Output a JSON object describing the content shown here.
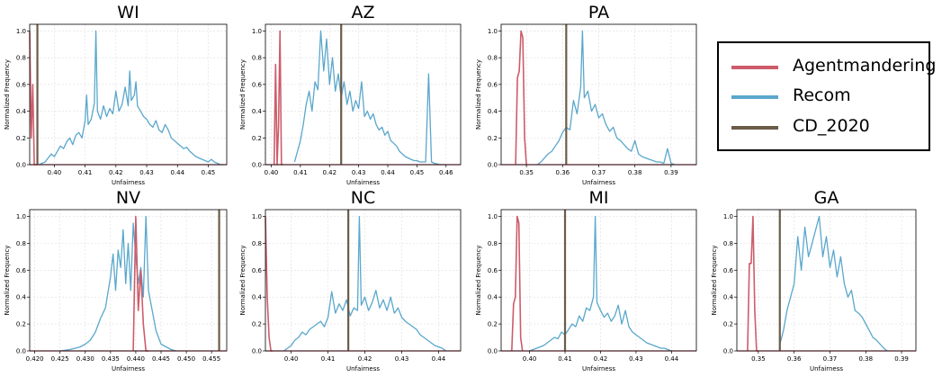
{
  "colors": {
    "agent": "#cd5c6b",
    "recom": "#5aa7cc",
    "cd": "#6b5c4a"
  },
  "legend": [
    {
      "label": "Agentmandering",
      "color": "#cd5c6b"
    },
    {
      "label": "Recom",
      "color": "#5aa7cc"
    },
    {
      "label": "CD_2020",
      "color": "#6b5c4a"
    }
  ],
  "chart_data": [
    {
      "type": "line",
      "title": "WI",
      "xlabel": "Unfairness",
      "ylabel": "Normalized Frequency",
      "xlim": [
        0.392,
        0.456
      ],
      "ylim": [
        0,
        1.05
      ],
      "xticks": [
        0.4,
        0.41,
        0.42,
        0.43,
        0.44,
        0.45
      ],
      "yticks": [
        0.0,
        0.2,
        0.4,
        0.6,
        0.8,
        1.0
      ],
      "cd_2020": 0.3945,
      "series": [
        {
          "name": "Recom",
          "x": [
            0.395,
            0.397,
            0.398,
            0.399,
            0.4,
            0.401,
            0.402,
            0.403,
            0.404,
            0.405,
            0.406,
            0.407,
            0.408,
            0.409,
            0.41,
            0.4105,
            0.411,
            0.412,
            0.413,
            0.4135,
            0.414,
            0.415,
            0.416,
            0.417,
            0.418,
            0.419,
            0.42,
            0.421,
            0.422,
            0.423,
            0.424,
            0.4245,
            0.425,
            0.426,
            0.4265,
            0.427,
            0.428,
            0.429,
            0.43,
            0.431,
            0.432,
            0.433,
            0.434,
            0.435,
            0.436,
            0.437,
            0.438,
            0.439,
            0.44,
            0.441,
            0.442,
            0.443,
            0.444,
            0.445,
            0.446,
            0.447,
            0.448,
            0.449,
            0.45,
            0.451,
            0.452,
            0.453,
            0.454,
            0.455
          ],
          "y": [
            0,
            0.02,
            0.05,
            0.08,
            0.06,
            0.1,
            0.14,
            0.12,
            0.17,
            0.2,
            0.15,
            0.22,
            0.24,
            0.2,
            0.33,
            0.52,
            0.3,
            0.34,
            0.46,
            1.0,
            0.4,
            0.34,
            0.44,
            0.36,
            0.42,
            0.38,
            0.55,
            0.4,
            0.45,
            0.58,
            0.44,
            0.7,
            0.48,
            0.52,
            0.62,
            0.44,
            0.4,
            0.36,
            0.34,
            0.3,
            0.28,
            0.33,
            0.26,
            0.24,
            0.3,
            0.26,
            0.2,
            0.18,
            0.16,
            0.14,
            0.12,
            0.13,
            0.1,
            0.08,
            0.06,
            0.05,
            0.04,
            0.03,
            0.02,
            0.04,
            0.02,
            0.01,
            0.0,
            0.0
          ]
        },
        {
          "name": "Agentmandering",
          "x": [
            0.392,
            0.3925,
            0.393,
            0.3935,
            0.394,
            0.3945
          ],
          "y": [
            1.0,
            0.2,
            0.6,
            0.0,
            0.0,
            0.0
          ]
        }
      ]
    },
    {
      "type": "line",
      "title": "AZ",
      "xlabel": "Unfairness",
      "ylabel": "Normalized Frequency",
      "xlim": [
        0.398,
        0.465
      ],
      "ylim": [
        0,
        1.05
      ],
      "xticks": [
        0.4,
        0.41,
        0.42,
        0.43,
        0.44,
        0.45,
        0.46
      ],
      "yticks": [
        0.0,
        0.2,
        0.4,
        0.6,
        0.8,
        1.0
      ],
      "cd_2020": 0.424,
      "series": [
        {
          "name": "Recom",
          "x": [
            0.408,
            0.41,
            0.411,
            0.412,
            0.413,
            0.414,
            0.415,
            0.416,
            0.417,
            0.418,
            0.419,
            0.42,
            0.421,
            0.422,
            0.423,
            0.424,
            0.425,
            0.426,
            0.427,
            0.428,
            0.429,
            0.43,
            0.431,
            0.432,
            0.433,
            0.434,
            0.435,
            0.436,
            0.437,
            0.438,
            0.439,
            0.44,
            0.441,
            0.442,
            0.443,
            0.444,
            0.445,
            0.446,
            0.447,
            0.448,
            0.449,
            0.45,
            0.451,
            0.452,
            0.453,
            0.454,
            0.455,
            0.456,
            0.458,
            0.46
          ],
          "y": [
            0.02,
            0.18,
            0.3,
            0.45,
            0.55,
            0.4,
            0.62,
            0.56,
            1.0,
            0.7,
            0.94,
            0.6,
            0.8,
            0.55,
            0.68,
            0.5,
            0.62,
            0.45,
            0.55,
            0.4,
            0.48,
            0.42,
            0.62,
            0.36,
            0.4,
            0.34,
            0.38,
            0.3,
            0.26,
            0.28,
            0.22,
            0.25,
            0.18,
            0.16,
            0.14,
            0.1,
            0.08,
            0.06,
            0.05,
            0.04,
            0.03,
            0.03,
            0.02,
            0.02,
            0.02,
            0.68,
            0.02,
            0.01,
            0.0,
            0.0
          ]
        },
        {
          "name": "Agentmandering",
          "x": [
            0.401,
            0.4015,
            0.402,
            0.4025,
            0.403,
            0.4035,
            0.404
          ],
          "y": [
            0,
            0.75,
            0.0,
            0.3,
            1.0,
            0.0,
            0.0
          ]
        }
      ]
    },
    {
      "type": "line",
      "title": "PA",
      "xlabel": "Unfairness",
      "ylabel": "Normalized Frequency",
      "xlim": [
        0.343,
        0.397
      ],
      "ylim": [
        0,
        1.05
      ],
      "xticks": [
        0.35,
        0.36,
        0.37,
        0.38,
        0.39
      ],
      "yticks": [
        0.0,
        0.2,
        0.4,
        0.6,
        0.8,
        1.0
      ],
      "cd_2020": 0.361,
      "series": [
        {
          "name": "Recom",
          "x": [
            0.353,
            0.354,
            0.355,
            0.356,
            0.357,
            0.358,
            0.359,
            0.36,
            0.361,
            0.362,
            0.363,
            0.364,
            0.365,
            0.3655,
            0.366,
            0.367,
            0.368,
            0.369,
            0.37,
            0.371,
            0.372,
            0.373,
            0.374,
            0.375,
            0.376,
            0.377,
            0.378,
            0.379,
            0.38,
            0.381,
            0.382,
            0.383,
            0.384,
            0.385,
            0.386,
            0.387,
            0.388,
            0.389,
            0.39,
            0.391
          ],
          "y": [
            0,
            0.02,
            0.05,
            0.08,
            0.1,
            0.14,
            0.18,
            0.24,
            0.28,
            0.26,
            0.48,
            0.38,
            0.58,
            1.0,
            0.5,
            0.55,
            0.4,
            0.45,
            0.35,
            0.38,
            0.3,
            0.25,
            0.28,
            0.2,
            0.18,
            0.15,
            0.12,
            0.1,
            0.18,
            0.08,
            0.06,
            0.05,
            0.04,
            0.03,
            0.02,
            0.02,
            0.01,
            0.12,
            0.01,
            0.0
          ]
        },
        {
          "name": "Agentmandering",
          "x": [
            0.347,
            0.3475,
            0.348,
            0.3485,
            0.349,
            0.3495,
            0.35
          ],
          "y": [
            0,
            0.65,
            0.7,
            1.0,
            0.95,
            0.2,
            0.0
          ]
        }
      ]
    },
    {
      "type": "line",
      "title": "NV",
      "xlabel": "Unfairness",
      "ylabel": "Normalized Frequency",
      "xlim": [
        0.419,
        0.458
      ],
      "ylim": [
        0,
        1.05
      ],
      "xticks": [
        0.42,
        0.425,
        0.43,
        0.435,
        0.44,
        0.445,
        0.45,
        0.455
      ],
      "yticks": [
        0.0,
        0.2,
        0.4,
        0.6,
        0.8,
        1.0
      ],
      "cd_2020": 0.4565,
      "series": [
        {
          "name": "Recom",
          "x": [
            0.425,
            0.427,
            0.429,
            0.43,
            0.431,
            0.432,
            0.433,
            0.434,
            0.435,
            0.4355,
            0.436,
            0.4365,
            0.437,
            0.4375,
            0.438,
            0.4385,
            0.439,
            0.4395,
            0.44,
            0.4405,
            0.441,
            0.4415,
            0.442,
            0.4425,
            0.443,
            0.4435,
            0.444,
            0.4445,
            0.445,
            0.446,
            0.447,
            0.448
          ],
          "y": [
            0,
            0.01,
            0.03,
            0.05,
            0.08,
            0.14,
            0.24,
            0.32,
            0.55,
            0.72,
            0.45,
            0.75,
            0.62,
            0.9,
            0.5,
            0.8,
            0.45,
            0.95,
            0.7,
            0.5,
            0.62,
            0.4,
            1.0,
            0.45,
            0.35,
            0.25,
            0.15,
            0.1,
            0.05,
            0.03,
            0.01,
            0.0
          ]
        },
        {
          "name": "Agentmandering",
          "x": [
            0.4395,
            0.44,
            0.4405,
            0.441,
            0.4415,
            0.442,
            0.4425
          ],
          "y": [
            0,
            1.0,
            0.3,
            0.6,
            0.2,
            0.0,
            0.0
          ]
        }
      ]
    },
    {
      "type": "line",
      "title": "NC",
      "xlabel": "Unfairness",
      "ylabel": "Normalized Frequency",
      "xlim": [
        0.393,
        0.446
      ],
      "ylim": [
        0,
        1.05
      ],
      "xticks": [
        0.4,
        0.41,
        0.42,
        0.43,
        0.44
      ],
      "yticks": [
        0.0,
        0.2,
        0.4,
        0.6,
        0.8,
        1.0
      ],
      "cd_2020": 0.4155,
      "series": [
        {
          "name": "Recom",
          "x": [
            0.398,
            0.4,
            0.401,
            0.402,
            0.403,
            0.404,
            0.405,
            0.406,
            0.407,
            0.408,
            0.409,
            0.41,
            0.411,
            0.412,
            0.413,
            0.414,
            0.415,
            0.416,
            0.417,
            0.418,
            0.4185,
            0.419,
            0.42,
            0.421,
            0.422,
            0.423,
            0.424,
            0.425,
            0.426,
            0.427,
            0.428,
            0.429,
            0.43,
            0.431,
            0.432,
            0.433,
            0.434,
            0.435,
            0.436,
            0.437,
            0.438,
            0.439,
            0.44,
            0.441,
            0.442
          ],
          "y": [
            0,
            0.04,
            0.08,
            0.1,
            0.14,
            0.12,
            0.16,
            0.18,
            0.2,
            0.22,
            0.18,
            0.25,
            0.44,
            0.28,
            0.35,
            0.3,
            0.38,
            0.26,
            0.32,
            0.3,
            1.0,
            0.34,
            0.4,
            0.3,
            0.36,
            0.45,
            0.32,
            0.38,
            0.3,
            0.4,
            0.28,
            0.32,
            0.25,
            0.22,
            0.2,
            0.18,
            0.16,
            0.12,
            0.1,
            0.08,
            0.06,
            0.04,
            0.03,
            0.02,
            0.0
          ]
        },
        {
          "name": "Agentmandering",
          "x": [
            0.393,
            0.3935,
            0.394,
            0.3945,
            0.395
          ],
          "y": [
            1.0,
            0.4,
            0.1,
            0.0,
            0.0
          ]
        }
      ]
    },
    {
      "type": "line",
      "title": "MI",
      "xlabel": "Unfairness",
      "ylabel": "Normalized Frequency",
      "xlim": [
        0.392,
        0.447
      ],
      "ylim": [
        0,
        1.05
      ],
      "xticks": [
        0.4,
        0.41,
        0.42,
        0.43,
        0.44
      ],
      "yticks": [
        0.0,
        0.2,
        0.4,
        0.6,
        0.8,
        1.0
      ],
      "cd_2020": 0.41,
      "series": [
        {
          "name": "Recom",
          "x": [
            0.4,
            0.402,
            0.404,
            0.405,
            0.406,
            0.407,
            0.408,
            0.409,
            0.41,
            0.411,
            0.412,
            0.413,
            0.414,
            0.415,
            0.416,
            0.417,
            0.418,
            0.4185,
            0.419,
            0.42,
            0.421,
            0.422,
            0.423,
            0.424,
            0.425,
            0.426,
            0.427,
            0.428,
            0.429,
            0.43,
            0.431,
            0.432,
            0.433,
            0.434,
            0.435,
            0.436,
            0.437,
            0.438,
            0.439,
            0.44
          ],
          "y": [
            0,
            0.02,
            0.04,
            0.06,
            0.08,
            0.1,
            0.09,
            0.14,
            0.12,
            0.16,
            0.2,
            0.18,
            0.26,
            0.22,
            0.32,
            0.3,
            0.4,
            1.0,
            0.36,
            0.3,
            0.25,
            0.28,
            0.22,
            0.26,
            0.34,
            0.2,
            0.3,
            0.18,
            0.14,
            0.12,
            0.1,
            0.08,
            0.06,
            0.05,
            0.04,
            0.03,
            0.02,
            0.02,
            0.01,
            0.0
          ]
        },
        {
          "name": "Agentmandering",
          "x": [
            0.395,
            0.3955,
            0.396,
            0.3965,
            0.397,
            0.3975,
            0.398
          ],
          "y": [
            0,
            0.35,
            0.4,
            1.0,
            0.95,
            0.1,
            0.0
          ]
        }
      ]
    },
    {
      "type": "line",
      "title": "GA",
      "xlabel": "Unfairness",
      "ylabel": "Normalized Frequency",
      "xlim": [
        0.344,
        0.394
      ],
      "ylim": [
        0,
        1.05
      ],
      "xticks": [
        0.35,
        0.36,
        0.37,
        0.38,
        0.39
      ],
      "yticks": [
        0.0,
        0.2,
        0.4,
        0.6,
        0.8,
        1.0
      ],
      "cd_2020": 0.356,
      "series": [
        {
          "name": "Recom",
          "x": [
            0.356,
            0.357,
            0.358,
            0.359,
            0.36,
            0.361,
            0.362,
            0.363,
            0.364,
            0.365,
            0.366,
            0.367,
            0.368,
            0.369,
            0.37,
            0.371,
            0.372,
            0.373,
            0.374,
            0.375,
            0.376,
            0.377,
            0.378,
            0.379,
            0.38,
            0.381,
            0.382,
            0.383,
            0.384,
            0.385,
            0.386
          ],
          "y": [
            0.05,
            0.15,
            0.3,
            0.4,
            0.5,
            0.85,
            0.6,
            0.92,
            0.7,
            0.8,
            0.9,
            1.0,
            0.7,
            0.85,
            0.62,
            0.75,
            0.55,
            0.7,
            0.5,
            0.4,
            0.45,
            0.3,
            0.28,
            0.25,
            0.2,
            0.15,
            0.1,
            0.08,
            0.05,
            0.02,
            0.0
          ]
        },
        {
          "name": "Agentmandering",
          "x": [
            0.347,
            0.3475,
            0.348,
            0.3485,
            0.349,
            0.3495,
            0.35
          ],
          "y": [
            0,
            0.65,
            0.65,
            1.0,
            0.3,
            0.0,
            0.0
          ]
        }
      ]
    }
  ]
}
